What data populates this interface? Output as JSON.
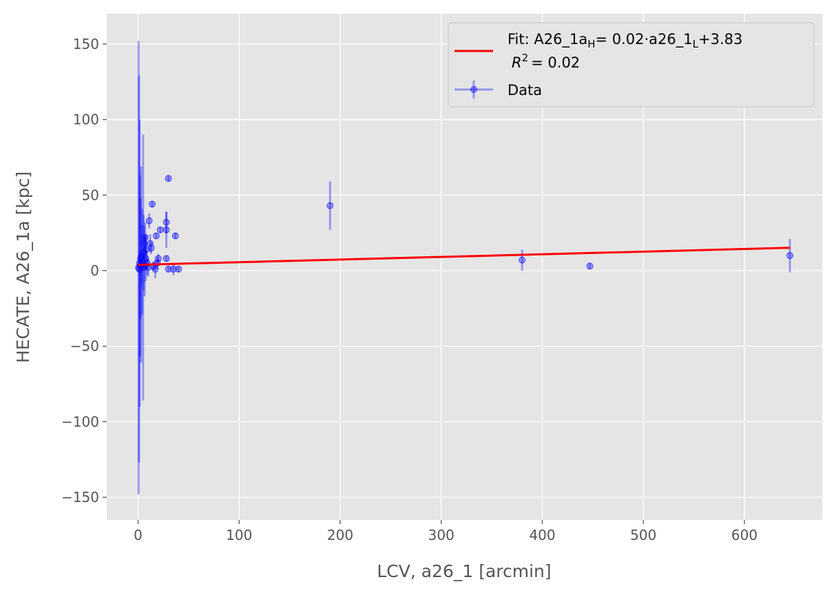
{
  "chart_data": {
    "type": "scatter",
    "title": "",
    "xlabel": "LCV, a26_1 [arcmin]",
    "ylabel": "HECATE, A26_1a [kpc]",
    "xlim": [
      -31,
      677
    ],
    "ylim": [
      -165,
      170
    ],
    "xticks": [
      0,
      100,
      200,
      300,
      400,
      500,
      600
    ],
    "xtick_labels": [
      "0",
      "100",
      "200",
      "300",
      "400",
      "500",
      "600"
    ],
    "yticks": [
      -150,
      -100,
      -50,
      0,
      50,
      100,
      150
    ],
    "ytick_labels": [
      "−150",
      "−100",
      "−50",
      "0",
      "50",
      "100",
      "150"
    ],
    "grid": true,
    "legend_position": "top-right",
    "fit": {
      "name_prefix": "Fit: A26_1a",
      "name_sub1": "H",
      "name_mid": "= 0.02·a26_1",
      "name_sub2": "L",
      "name_suffix": "+3.83",
      "r2_prefix": "R",
      "r2_sup": "2",
      "r2_value": "=  0.02",
      "slope": 0.0175,
      "intercept": 3.83,
      "x_range": [
        0,
        645
      ],
      "color": "#ff0000"
    },
    "data_series": {
      "name": "Data",
      "color": "#0000ff",
      "points": [
        {
          "x": 0.5,
          "y": 2,
          "yerr": 150
        },
        {
          "x": 1,
          "y": 1,
          "yerr": 128
        },
        {
          "x": 1.5,
          "y": 5,
          "yerr": 95
        },
        {
          "x": 2,
          "y": 3,
          "yerr": 60
        },
        {
          "x": 2.5,
          "y": 8,
          "yerr": 40
        },
        {
          "x": 3,
          "y": 4,
          "yerr": 65
        },
        {
          "x": 3.5,
          "y": 10,
          "yerr": 20
        },
        {
          "x": 4,
          "y": 6,
          "yerr": 35
        },
        {
          "x": 5,
          "y": 2,
          "yerr": 88
        },
        {
          "x": 5.5,
          "y": 12,
          "yerr": 25
        },
        {
          "x": 6,
          "y": 18,
          "yerr": 12
        },
        {
          "x": 6.5,
          "y": 3,
          "yerr": 20
        },
        {
          "x": 7,
          "y": 22,
          "yerr": 10
        },
        {
          "x": 7.5,
          "y": 8,
          "yerr": 15
        },
        {
          "x": 8,
          "y": 14,
          "yerr": 10
        },
        {
          "x": 9,
          "y": 5,
          "yerr": 8
        },
        {
          "x": 10,
          "y": 2,
          "yerr": 6
        },
        {
          "x": 11,
          "y": 33,
          "yerr": 5
        },
        {
          "x": 12,
          "y": 18,
          "yerr": 6
        },
        {
          "x": 13,
          "y": 15,
          "yerr": 4
        },
        {
          "x": 14,
          "y": 44,
          "yerr": 2
        },
        {
          "x": 15,
          "y": 3,
          "yerr": 3
        },
        {
          "x": 17,
          "y": 1,
          "yerr": 6
        },
        {
          "x": 18,
          "y": 23,
          "yerr": 2
        },
        {
          "x": 19,
          "y": 5,
          "yerr": 4
        },
        {
          "x": 20,
          "y": 8,
          "yerr": 3
        },
        {
          "x": 22,
          "y": 27,
          "yerr": 2
        },
        {
          "x": 28,
          "y": 32,
          "yerr": 7
        },
        {
          "x": 28,
          "y": 27,
          "yerr": 12
        },
        {
          "x": 28,
          "y": 8,
          "yerr": 2
        },
        {
          "x": 30,
          "y": 1,
          "yerr": 2
        },
        {
          "x": 30,
          "y": 61,
          "yerr": 2
        },
        {
          "x": 35,
          "y": 1,
          "yerr": 4
        },
        {
          "x": 37,
          "y": 23,
          "yerr": 2
        },
        {
          "x": 40,
          "y": 1,
          "yerr": 2
        },
        {
          "x": 190,
          "y": 43,
          "yerr": 16
        },
        {
          "x": 380,
          "y": 7,
          "yerr": 7
        },
        {
          "x": 447,
          "y": 3,
          "yerr": 2
        },
        {
          "x": 645,
          "y": 10,
          "yerr": 11
        }
      ]
    }
  }
}
